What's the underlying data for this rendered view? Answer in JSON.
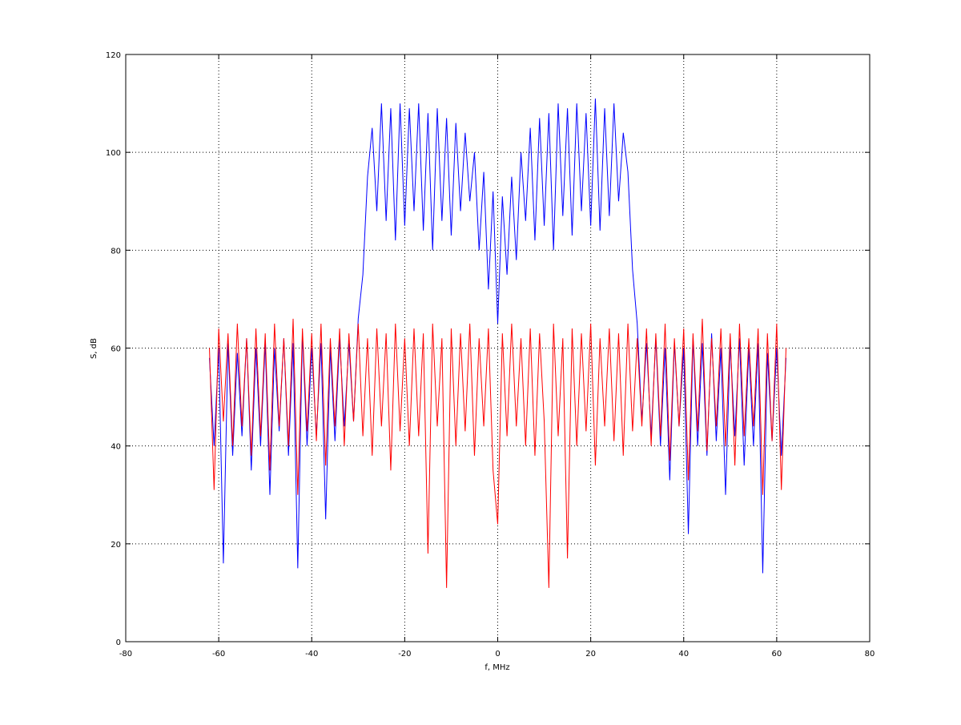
{
  "chart_data": {
    "type": "line",
    "xlabel": "f, MHz",
    "ylabel": "S, dB",
    "xlim": [
      -80,
      80
    ],
    "xticks": [
      -80,
      -60,
      -40,
      -20,
      0,
      20,
      40,
      60,
      80
    ],
    "ylim": [
      0,
      120
    ],
    "yticks": [
      0,
      20,
      40,
      60,
      80,
      100,
      120
    ],
    "grid": true,
    "x": [
      -62,
      -61,
      -60,
      -59,
      -58,
      -57,
      -56,
      -55,
      -54,
      -53,
      -52,
      -51,
      -50,
      -49,
      -48,
      -47,
      -46,
      -45,
      -44,
      -43,
      -42,
      -41,
      -40,
      -39,
      -38,
      -37,
      -36,
      -35,
      -34,
      -33,
      -32,
      -31,
      -30,
      -29,
      -28,
      -27,
      -26,
      -25,
      -24,
      -23,
      -22,
      -21,
      -20,
      -19,
      -18,
      -17,
      -16,
      -15,
      -14,
      -13,
      -12,
      -11,
      -10,
      -9,
      -8,
      -7,
      -6,
      -5,
      -4,
      -3,
      -2,
      -1,
      0,
      1,
      2,
      3,
      4,
      5,
      6,
      7,
      8,
      9,
      10,
      11,
      12,
      13,
      14,
      15,
      16,
      17,
      18,
      19,
      20,
      21,
      22,
      23,
      24,
      25,
      26,
      27,
      28,
      29,
      30,
      31,
      32,
      33,
      34,
      35,
      36,
      37,
      38,
      39,
      40,
      41,
      42,
      43,
      44,
      45,
      46,
      47,
      48,
      49,
      50,
      51,
      52,
      53,
      54,
      55,
      56,
      57,
      58,
      59,
      60,
      61,
      62
    ],
    "series": [
      {
        "color": "#0000ff",
        "values": [
          58,
          40,
          60,
          16,
          61,
          38,
          59,
          42,
          62,
          35,
          60,
          40,
          61,
          30,
          60,
          43,
          62,
          38,
          61,
          15,
          63,
          40,
          60,
          42,
          61,
          25,
          60,
          41,
          62,
          44,
          61,
          45,
          66,
          75,
          95,
          105,
          88,
          110,
          86,
          109,
          82,
          110,
          85,
          109,
          88,
          110,
          84,
          108,
          80,
          109,
          86,
          107,
          83,
          106,
          88,
          104,
          90,
          100,
          80,
          96,
          72,
          92,
          65,
          91,
          75,
          95,
          78,
          100,
          86,
          105,
          82,
          107,
          85,
          108,
          80,
          110,
          87,
          109,
          83,
          110,
          88,
          108,
          85,
          111,
          84,
          109,
          87,
          110,
          90,
          104,
          96,
          76,
          65,
          45,
          61,
          42,
          62,
          40,
          60,
          33,
          61,
          44,
          60,
          22,
          62,
          40,
          61,
          38,
          63,
          41,
          60,
          30,
          61,
          42,
          62,
          36,
          60,
          40,
          61,
          14,
          59,
          41,
          60,
          38,
          58
        ]
      },
      {
        "color": "#ff0000",
        "values": [
          60,
          31,
          64,
          45,
          63,
          40,
          65,
          44,
          62,
          38,
          64,
          42,
          63,
          35,
          65,
          44,
          62,
          40,
          66,
          30,
          64,
          43,
          63,
          41,
          65,
          36,
          62,
          44,
          64,
          40,
          63,
          45,
          65,
          42,
          62,
          38,
          64,
          44,
          63,
          35,
          65,
          43,
          62,
          40,
          64,
          42,
          63,
          18,
          65,
          44,
          62,
          11,
          64,
          40,
          63,
          43,
          65,
          38,
          62,
          44,
          64,
          35,
          24,
          63,
          42,
          65,
          44,
          62,
          40,
          64,
          38,
          63,
          45,
          11,
          65,
          42,
          62,
          17,
          64,
          40,
          63,
          43,
          65,
          36,
          62,
          44,
          64,
          41,
          63,
          38,
          65,
          43,
          62,
          44,
          64,
          40,
          63,
          42,
          65,
          37,
          62,
          44,
          64,
          33,
          63,
          43,
          66,
          39,
          62,
          44,
          64,
          40,
          63,
          36,
          65,
          42,
          62,
          44,
          64,
          30,
          63,
          41,
          65,
          31,
          60
        ]
      }
    ]
  }
}
